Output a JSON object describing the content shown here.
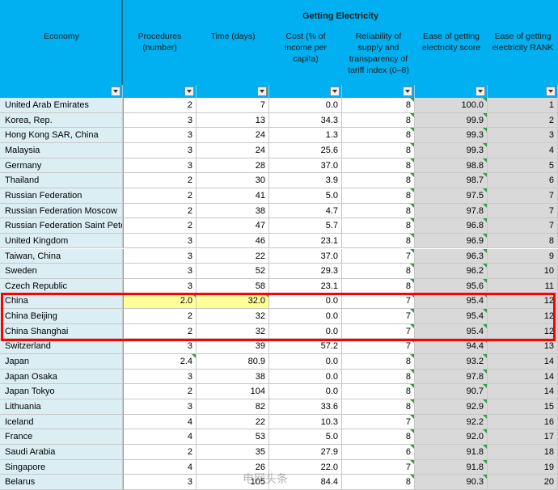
{
  "header": {
    "group": "Getting Electricity",
    "columns": [
      "Economy",
      "Procedures (number)",
      "Time (days)",
      "Cost (% of income per capita)",
      "Reliability of supply and transparency of tariff index (0–8)",
      "Ease of getting electricity score",
      "Ease of getting electricity RANK"
    ]
  },
  "rows": [
    [
      "United Arab Emirates",
      "2",
      "7",
      "0.0",
      "8",
      "100.0",
      "1"
    ],
    [
      "Korea, Rep.",
      "3",
      "13",
      "34.3",
      "8",
      "99.9",
      "2"
    ],
    [
      "Hong Kong SAR, China",
      "3",
      "24",
      "1.3",
      "8",
      "99.3",
      "3"
    ],
    [
      "Malaysia",
      "3",
      "24",
      "25.6",
      "8",
      "99.3",
      "4"
    ],
    [
      "Germany",
      "3",
      "28",
      "37.0",
      "8",
      "98.8",
      "5"
    ],
    [
      "Thailand",
      "2",
      "30",
      "3.9",
      "8",
      "98.7",
      "6"
    ],
    [
      "Russian Federation",
      "2",
      "41",
      "5.0",
      "8",
      "97.5",
      "7"
    ],
    [
      "Russian Federation Moscow",
      "2",
      "38",
      "4.7",
      "8",
      "97.8",
      "7"
    ],
    [
      "Russian Federation Saint Peter",
      "2",
      "47",
      "5.7",
      "8",
      "96.8",
      "7"
    ],
    [
      "United Kingdom",
      "3",
      "46",
      "23.1",
      "8",
      "96.9",
      "8"
    ],
    [
      "Taiwan, China",
      "3",
      "22",
      "37.0",
      "7",
      "96.3",
      "9"
    ],
    [
      "Sweden",
      "3",
      "52",
      "29.3",
      "8",
      "96.2",
      "10"
    ],
    [
      "Czech Republic",
      "3",
      "58",
      "23.1",
      "8",
      "95.6",
      "11"
    ],
    [
      "China",
      "2.0",
      "32.0",
      "0.0",
      "7",
      "95.4",
      "12"
    ],
    [
      "China Beijing",
      "2",
      "32",
      "0.0",
      "7",
      "95.4",
      "12"
    ],
    [
      "China Shanghai",
      "2",
      "32",
      "0.0",
      "7",
      "95.4",
      "12"
    ],
    [
      "Switzerland",
      "3",
      "39",
      "57.2",
      "7",
      "94.4",
      "13"
    ],
    [
      "Japan",
      "2.4",
      "80.9",
      "0.0",
      "8",
      "93.2",
      "14"
    ],
    [
      "Japan Osaka",
      "3",
      "38",
      "0.0",
      "8",
      "97.8",
      "14"
    ],
    [
      "Japan Tokyo",
      "2",
      "104",
      "0.0",
      "8",
      "90.7",
      "14"
    ],
    [
      "Lithuania",
      "3",
      "82",
      "33.6",
      "8",
      "92.9",
      "15"
    ],
    [
      "Iceland",
      "4",
      "22",
      "10.3",
      "7",
      "92.2",
      "16"
    ],
    [
      "France",
      "4",
      "53",
      "5.0",
      "8",
      "92.0",
      "17"
    ],
    [
      "Saudi Arabia",
      "2",
      "35",
      "27.9",
      "6",
      "91.8",
      "18"
    ],
    [
      "Singapore",
      "4",
      "26",
      "22.0",
      "7",
      "91.8",
      "19"
    ],
    [
      "Belarus",
      "3",
      "105",
      "84.4",
      "8",
      "90.3",
      "20"
    ]
  ],
  "watermark": "电网头条"
}
